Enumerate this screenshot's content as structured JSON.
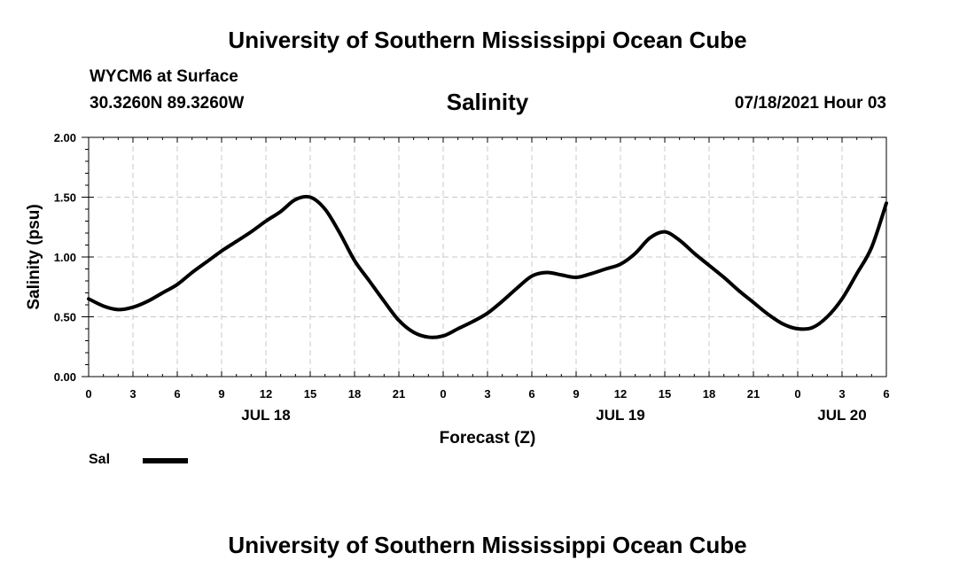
{
  "header": {
    "title": "University of Southern Mississippi Ocean Cube",
    "station": "WYCM6 at Surface",
    "coords": "30.3260N  89.3260W",
    "variable": "Salinity",
    "datetime": "07/18/2021 Hour 03"
  },
  "footer": {
    "title": "University of Southern Mississippi Ocean Cube"
  },
  "legend": {
    "label": "Sal",
    "color": "#000000"
  },
  "chart_data": {
    "type": "line",
    "title": "Salinity",
    "xlabel": "Forecast (Z)",
    "ylabel": "Salinity (psu)",
    "xlim": [
      0,
      54
    ],
    "ylim": [
      0,
      2
    ],
    "x_ticks": [
      0,
      3,
      6,
      9,
      12,
      15,
      18,
      21,
      24,
      27,
      30,
      33,
      36,
      39,
      42,
      45,
      48,
      51,
      54
    ],
    "x_tick_labels": [
      "0",
      "3",
      "6",
      "9",
      "12",
      "15",
      "18",
      "21",
      "0",
      "3",
      "6",
      "9",
      "12",
      "15",
      "18",
      "21",
      "0",
      "3",
      "6"
    ],
    "y_ticks": [
      0,
      0.5,
      1.0,
      1.5,
      2.0
    ],
    "y_tick_labels": [
      "0.00",
      "0.50",
      "1.00",
      "1.50",
      "2.00"
    ],
    "date_labels": [
      {
        "x": 12,
        "label": "JUL 18"
      },
      {
        "x": 36,
        "label": "JUL 19"
      },
      {
        "x": 51,
        "label": "JUL 20"
      }
    ],
    "grid": true,
    "series": [
      {
        "name": "Sal",
        "x": [
          0,
          1,
          2,
          3,
          4,
          5,
          6,
          7,
          8,
          9,
          10,
          11,
          12,
          13,
          14,
          15,
          16,
          17,
          18,
          19,
          20,
          21,
          22,
          23,
          24,
          25,
          26,
          27,
          28,
          29,
          30,
          31,
          32,
          33,
          34,
          35,
          36,
          37,
          38,
          39,
          40,
          41,
          42,
          43,
          44,
          45,
          46,
          47,
          48,
          49,
          50,
          51,
          52,
          53,
          54
        ],
        "values": [
          0.65,
          0.59,
          0.56,
          0.58,
          0.63,
          0.7,
          0.77,
          0.87,
          0.96,
          1.05,
          1.13,
          1.21,
          1.3,
          1.38,
          1.48,
          1.5,
          1.4,
          1.2,
          0.97,
          0.8,
          0.63,
          0.47,
          0.37,
          0.33,
          0.34,
          0.4,
          0.46,
          0.53,
          0.63,
          0.74,
          0.84,
          0.87,
          0.85,
          0.83,
          0.86,
          0.9,
          0.94,
          1.03,
          1.16,
          1.21,
          1.14,
          1.03,
          0.93,
          0.83,
          0.72,
          0.62,
          0.52,
          0.44,
          0.4,
          0.41,
          0.5,
          0.65,
          0.86,
          1.08,
          1.45
        ]
      }
    ]
  }
}
